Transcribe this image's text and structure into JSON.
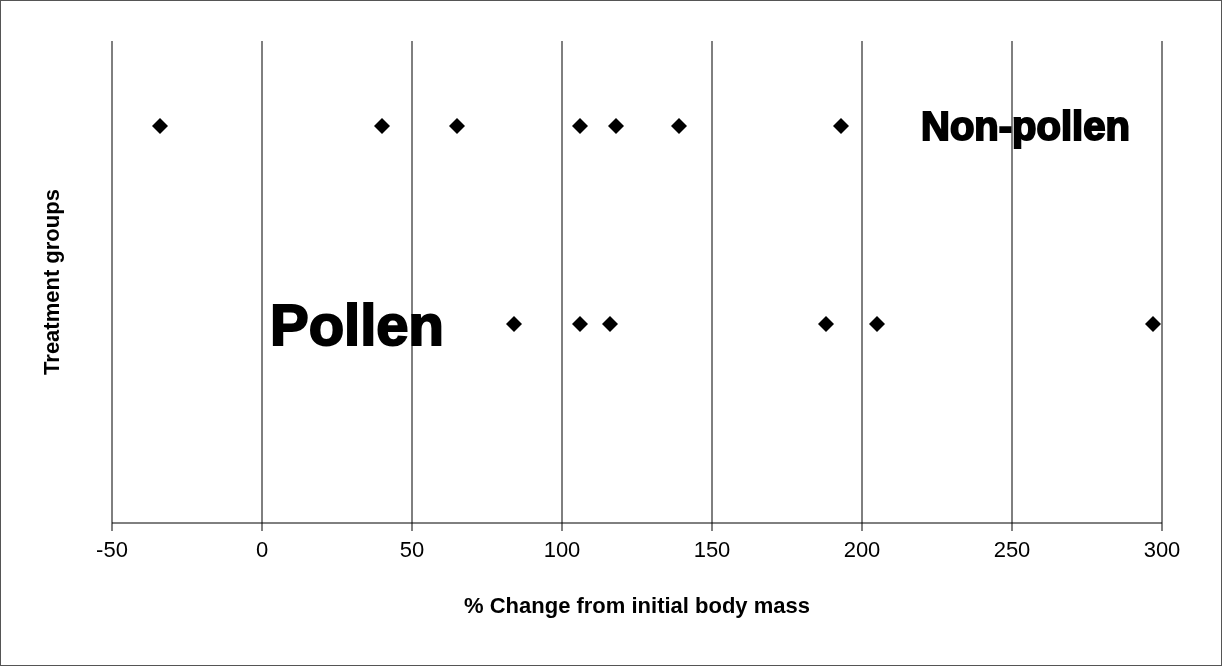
{
  "chart_data": {
    "type": "scatter",
    "orientation": "horizontal",
    "xlabel": "% Change from initial body mass",
    "ylabel": "Treatment groups",
    "categories": [
      "Non-pollen",
      "Pollen"
    ],
    "xlim": [
      -50,
      300
    ],
    "xticks": [
      -50,
      0,
      50,
      100,
      150,
      200,
      250,
      300
    ],
    "grid": "x",
    "marker": "diamond",
    "series": [
      {
        "color": "#000000",
        "x": [
          "Non-pollen",
          "Non-pollen",
          "Non-pollen",
          "Non-pollen",
          "Non-pollen",
          "Non-pollen",
          "Non-pollen",
          "Pollen",
          "Pollen",
          "Pollen",
          "Pollen",
          "Pollen",
          "Pollen"
        ],
        "values": [
          -34,
          40,
          65,
          106,
          118,
          139,
          193,
          84,
          106,
          116,
          188,
          205,
          297
        ]
      }
    ]
  }
}
